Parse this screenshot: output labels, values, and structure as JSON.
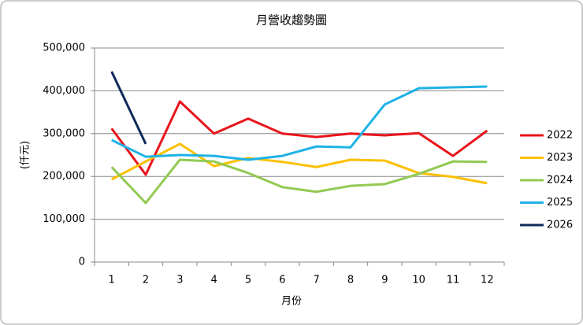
{
  "chart_data": {
    "type": "line",
    "title": "月營收趨勢圖",
    "x_label": "月份",
    "y_label": "(仟元)",
    "categories": [
      "1",
      "2",
      "3",
      "4",
      "5",
      "6",
      "7",
      "8",
      "9",
      "10",
      "11",
      "12"
    ],
    "series": [
      {
        "name": "2022",
        "color": "#e8141b",
        "values": [
          312000,
          204000,
          375000,
          300000,
          335000,
          300000,
          292000,
          300000,
          296000,
          301000,
          248000,
          307000
        ]
      },
      {
        "name": "2023",
        "color": "#fcc000",
        "values": [
          193000,
          235000,
          276000,
          224000,
          243000,
          234000,
          222000,
          239000,
          237000,
          208000,
          199000,
          184000
        ]
      },
      {
        "name": "2024",
        "color": "#92c952",
        "values": [
          222000,
          138000,
          239000,
          235000,
          208000,
          175000,
          164000,
          178000,
          182000,
          206000,
          235000,
          234000
        ]
      },
      {
        "name": "2025",
        "color": "#1fb2e6",
        "values": [
          285000,
          246000,
          250000,
          248000,
          239000,
          248000,
          270000,
          268000,
          368000,
          406000,
          408000,
          410000
        ]
      },
      {
        "name": "2026",
        "color": "#0e2a5a",
        "values": [
          445000,
          276000,
          null,
          null,
          null,
          null,
          null,
          null,
          null,
          null,
          null,
          null
        ]
      }
    ],
    "ylim": [
      0,
      500000
    ],
    "yticks": [
      0,
      {
        "value": 100000,
        "label": "100,000"
      },
      {
        "value": 200000,
        "label": "200,000"
      },
      {
        "value": 300000,
        "label": "300,000"
      },
      {
        "value": 400000,
        "label": "400,000"
      },
      {
        "value": 500000,
        "label": "500,000"
      }
    ],
    "grid": true,
    "legend": "right"
  }
}
